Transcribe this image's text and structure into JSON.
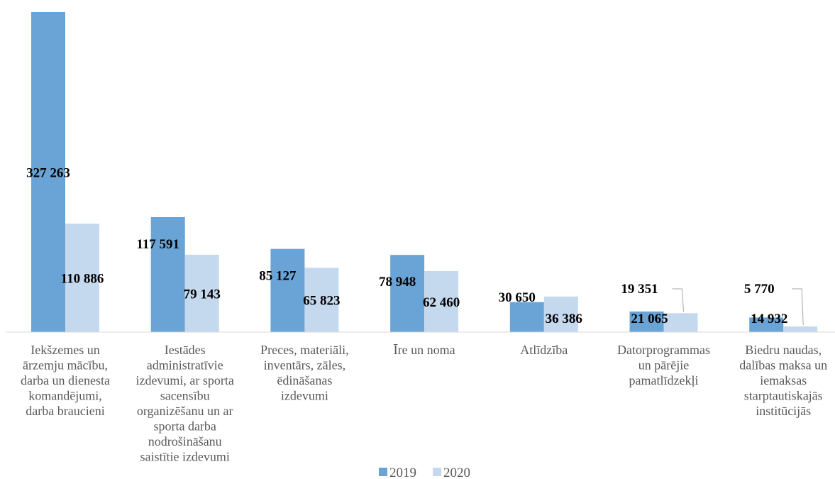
{
  "chart_data": {
    "type": "bar",
    "categories": [
      [
        "Iekšzemes un",
        "ārzemju mācību,",
        "darba un dienesta",
        "komandējumi,",
        "darba braucieni"
      ],
      [
        "Iestādes",
        "administratīvie",
        "izdevumi, ar sporta",
        "sacensību",
        "organizēšanu un ar",
        "sporta darba",
        "nodrošināšanu",
        "saistītie izdevumi"
      ],
      [
        "Preces, materiāli,",
        "inventārs, zāles,",
        "ēdināšanas",
        "izdevumi"
      ],
      [
        "Īre un noma"
      ],
      [
        "Atlīdzība"
      ],
      [
        "Datorprogrammas",
        "un pārējie",
        "pamatlīdzekļi"
      ],
      [
        "Biedru naudas,",
        "dalības maksa un",
        "iemaksas",
        "starptautiskajās",
        "institūcijās"
      ]
    ],
    "series": [
      {
        "name": "2019",
        "color": "#6aa3d5",
        "values": [
          327263,
          117591,
          85127,
          78948,
          30650,
          21065,
          14932
        ],
        "labels": [
          "327 263",
          "117 591",
          "85 127",
          "78 948",
          "30 650",
          "21 065",
          "14 932"
        ]
      },
      {
        "name": "2020",
        "color": "#c5d9ee",
        "values": [
          110886,
          79143,
          65823,
          62460,
          36386,
          19351,
          5770
        ],
        "labels": [
          "110 886",
          "79 143",
          "65 823",
          "62 460",
          "36 386",
          "19 351",
          "5 770"
        ]
      }
    ],
    "ylim": [
      0,
      327263
    ],
    "grid": false,
    "legend_position": "bottom"
  }
}
